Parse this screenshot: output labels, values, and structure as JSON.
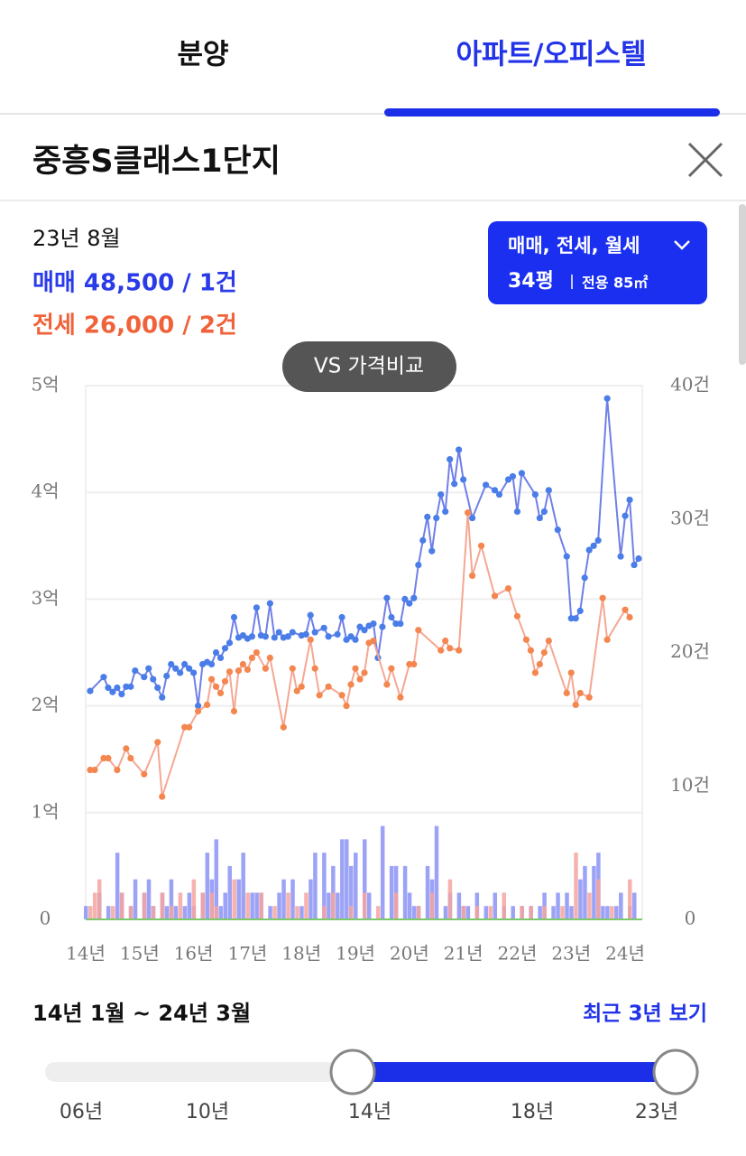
{
  "tabs": [
    "분양",
    "아파트/오피스텔"
  ],
  "header": {
    "title": "중흥S클래스1단지"
  },
  "summary": {
    "date": "23년 8월",
    "sale": "매매 48,500 / 1건",
    "jeonse": "전세 26,000 / 2건"
  },
  "filter": {
    "types": "매매, 전세, 월세",
    "size": "34평",
    "area": "전용 85㎡"
  },
  "compare_button": "VS 가격비교",
  "chart_data": {
    "type": "line",
    "xlim": [
      0,
      123
    ],
    "xticks": [
      {
        "value": 0,
        "label": "14년"
      },
      {
        "value": 12,
        "label": "15년"
      },
      {
        "value": 24,
        "label": "16년"
      },
      {
        "value": 36,
        "label": "17년"
      },
      {
        "value": 48,
        "label": "18년"
      },
      {
        "value": 60,
        "label": "19년"
      },
      {
        "value": 72,
        "label": "20년"
      },
      {
        "value": 84,
        "label": "21년"
      },
      {
        "value": 96,
        "label": "22년"
      },
      {
        "value": 108,
        "label": "23년"
      },
      {
        "value": 120,
        "label": "24년"
      }
    ],
    "ylim": [
      0,
      5
    ],
    "yticks": [
      0,
      {
        "value": 1,
        "label": "1억"
      },
      {
        "value": 2,
        "label": "2억"
      },
      {
        "value": 3,
        "label": "3억"
      },
      {
        "value": 4,
        "label": "4억"
      },
      {
        "value": 5,
        "label": "5억"
      }
    ],
    "y2lim": [
      0,
      40
    ],
    "y2ticks": [
      0,
      {
        "value": 10,
        "label": "10건"
      },
      {
        "value": 20,
        "label": "20건"
      },
      {
        "value": 30,
        "label": "30건"
      },
      {
        "value": 40,
        "label": "40건"
      }
    ],
    "grid": true,
    "series": [
      {
        "type": "bar",
        "axis": "y2",
        "color": "#8b93f5",
        "x": [
          0,
          3,
          5,
          7,
          8,
          10,
          11,
          13,
          14,
          15,
          17,
          18,
          19,
          20,
          22,
          23,
          24,
          26,
          27,
          28,
          29,
          30,
          31,
          32,
          34,
          35,
          37,
          38,
          39,
          41,
          43,
          44,
          46,
          48,
          50,
          51,
          53,
          54,
          55,
          56,
          57,
          58,
          59,
          60,
          62,
          63,
          66,
          68,
          69,
          71,
          72,
          73,
          74,
          76,
          77,
          78,
          80,
          81,
          83,
          84,
          85,
          87,
          89,
          91,
          93,
          95,
          97,
          99,
          101,
          102,
          104,
          105,
          107,
          108,
          110,
          111,
          113,
          114,
          115,
          116,
          118,
          119,
          121,
          122
        ],
        "values": [
          1,
          2,
          1,
          5,
          2,
          1,
          3,
          2,
          3,
          1,
          2,
          1,
          3,
          1,
          1,
          2,
          1,
          2,
          5,
          3,
          6,
          1,
          2,
          4,
          3,
          5,
          2,
          2,
          2,
          1,
          2,
          3,
          3,
          1,
          3,
          5,
          5,
          2,
          4,
          2,
          6,
          6,
          4,
          5,
          6,
          2,
          7,
          4,
          4,
          4,
          2,
          1,
          1,
          4,
          3,
          7,
          1,
          2,
          2,
          1,
          1,
          2,
          1,
          2,
          1,
          1,
          1,
          1,
          1,
          2,
          1,
          2,
          2,
          1,
          3,
          4,
          4,
          5,
          1,
          1,
          1,
          2,
          1,
          2
        ]
      },
      {
        "type": "bar",
        "axis": "y2",
        "color": "#f5a5a0",
        "x": [
          1,
          2,
          3,
          6,
          8,
          10,
          13,
          15,
          17,
          19,
          21,
          24,
          26,
          28,
          29,
          33,
          36,
          39,
          42,
          45,
          47,
          49,
          53,
          55,
          59,
          62,
          65,
          69,
          74,
          77,
          81,
          84,
          87,
          90,
          93,
          97,
          99,
          102,
          106,
          109,
          112,
          114,
          117,
          121
        ],
        "values": [
          1,
          2,
          3,
          1,
          2,
          1,
          2,
          1,
          2,
          1,
          2,
          3,
          2,
          2,
          1,
          3,
          2,
          2,
          1,
          2,
          1,
          2,
          1,
          2,
          1,
          2,
          1,
          2,
          1,
          2,
          3,
          1,
          1,
          1,
          2,
          1,
          1,
          1,
          1,
          5,
          2,
          3,
          1,
          3
        ]
      },
      {
        "type": "line",
        "axis": "y",
        "color": "#6f7fe8",
        "marker": "#4a7de8",
        "x": [
          1,
          4,
          5,
          6,
          7,
          8,
          9,
          10,
          11,
          13,
          14,
          15,
          16,
          17,
          18,
          19,
          20,
          21,
          22,
          23,
          24,
          25,
          26,
          27,
          28,
          29,
          30,
          31,
          32,
          33,
          34,
          35,
          36,
          37,
          38,
          39,
          40,
          41,
          42,
          43,
          44,
          45,
          46,
          48,
          49,
          50,
          51,
          53,
          54,
          56,
          57,
          58,
          59,
          60,
          61,
          62,
          63,
          64,
          65,
          66,
          67,
          68,
          69,
          70,
          71,
          72,
          73,
          74,
          75,
          76,
          77,
          78,
          79,
          80,
          81,
          82,
          83,
          84,
          86,
          89,
          91,
          92,
          94,
          95,
          96,
          97,
          100,
          101,
          102,
          103,
          105,
          107,
          108,
          109,
          110,
          111,
          112,
          113,
          114,
          116,
          119,
          120,
          121,
          122,
          123
        ],
        "values": [
          2.14,
          2.27,
          2.17,
          2.13,
          2.17,
          2.11,
          2.18,
          2.18,
          2.33,
          2.27,
          2.35,
          2.25,
          2.17,
          2.08,
          2.28,
          2.39,
          2.35,
          2.31,
          2.39,
          2.35,
          2.31,
          2.0,
          2.39,
          2.41,
          2.39,
          2.5,
          2.45,
          2.54,
          2.59,
          2.83,
          2.64,
          2.66,
          2.63,
          2.65,
          2.92,
          2.66,
          2.65,
          2.96,
          2.64,
          2.69,
          2.64,
          2.65,
          2.69,
          2.66,
          2.67,
          2.85,
          2.69,
          2.73,
          2.65,
          2.67,
          2.83,
          2.62,
          2.65,
          2.62,
          2.74,
          2.71,
          2.75,
          2.77,
          2.45,
          2.74,
          3.01,
          2.83,
          2.77,
          2.77,
          3.0,
          2.96,
          3.01,
          3.32,
          3.55,
          3.77,
          3.45,
          3.76,
          3.98,
          3.82,
          4.31,
          4.08,
          4.4,
          4.12,
          3.76,
          4.07,
          4.02,
          3.98,
          4.12,
          4.15,
          3.82,
          4.18,
          3.98,
          3.76,
          3.82,
          4.02,
          3.65,
          3.4,
          2.82,
          2.82,
          2.89,
          3.2,
          3.46,
          3.5,
          3.55,
          4.88,
          3.4,
          3.78,
          3.93,
          3.32,
          3.38
        ]
      },
      {
        "type": "line",
        "axis": "y",
        "color": "#f5a792",
        "marker": "#f4864f",
        "x": [
          1,
          2,
          4,
          5,
          7,
          9,
          10,
          13,
          16,
          17,
          22,
          23,
          25,
          27,
          28,
          29,
          30,
          31,
          32,
          33,
          34,
          35,
          36,
          37,
          38,
          40,
          41,
          44,
          46,
          47,
          48,
          50,
          51,
          52,
          54,
          57,
          58,
          59,
          60,
          61,
          62,
          63,
          64,
          67,
          68,
          70,
          72,
          73,
          74,
          79,
          80,
          81,
          83,
          85,
          86,
          88,
          91,
          94,
          96,
          98,
          99,
          100,
          101,
          102,
          103,
          107,
          108,
          109,
          110,
          112,
          115,
          116,
          120,
          121
        ],
        "values": [
          1.4,
          1.4,
          1.51,
          1.51,
          1.4,
          1.6,
          1.51,
          1.36,
          1.66,
          1.15,
          1.8,
          1.8,
          1.95,
          2.01,
          2.25,
          2.18,
          2.12,
          2.23,
          2.32,
          1.95,
          2.33,
          2.39,
          2.34,
          2.45,
          2.5,
          2.35,
          2.45,
          1.8,
          2.35,
          2.14,
          2.18,
          2.62,
          2.35,
          2.1,
          2.18,
          2.1,
          2.0,
          2.2,
          2.35,
          2.25,
          2.31,
          2.59,
          2.61,
          2.2,
          2.35,
          2.08,
          2.39,
          2.39,
          2.71,
          2.52,
          2.61,
          2.54,
          2.52,
          3.81,
          3.22,
          3.5,
          3.03,
          3.1,
          2.84,
          2.62,
          2.52,
          2.31,
          2.39,
          2.5,
          2.61,
          2.12,
          2.31,
          2.01,
          2.12,
          2.08,
          3.01,
          2.62,
          2.9,
          2.83
        ]
      }
    ]
  },
  "range": {
    "label": "14년 1월 ~ 24년 3월",
    "recent": "최근 3년 보기",
    "slider_labels": [
      "06년",
      "10년",
      "14년",
      "18년",
      "23년"
    ]
  }
}
